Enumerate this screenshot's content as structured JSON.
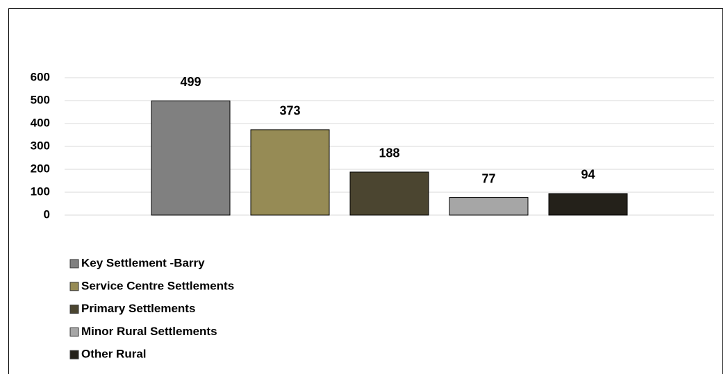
{
  "chart_data": {
    "type": "bar",
    "series": [
      {
        "name": "Key Settlement -Barry",
        "color": "#808080",
        "values": [
          499
        ]
      },
      {
        "name": "Service Centre Settlements",
        "color": "#968b55",
        "values": [
          373
        ]
      },
      {
        "name": "Primary Settlements",
        "color": "#4b4530",
        "values": [
          188
        ]
      },
      {
        "name": "Minor Rural Settlements",
        "color": "#a6a6a6",
        "values": [
          77
        ]
      },
      {
        "name": "Other Rural",
        "color": "#24211a",
        "values": [
          94
        ]
      }
    ],
    "ylim": [
      0,
      600
    ],
    "yticks": [
      0,
      100,
      200,
      300,
      400,
      500,
      600
    ],
    "grid": true,
    "legend": "bottom-left"
  }
}
